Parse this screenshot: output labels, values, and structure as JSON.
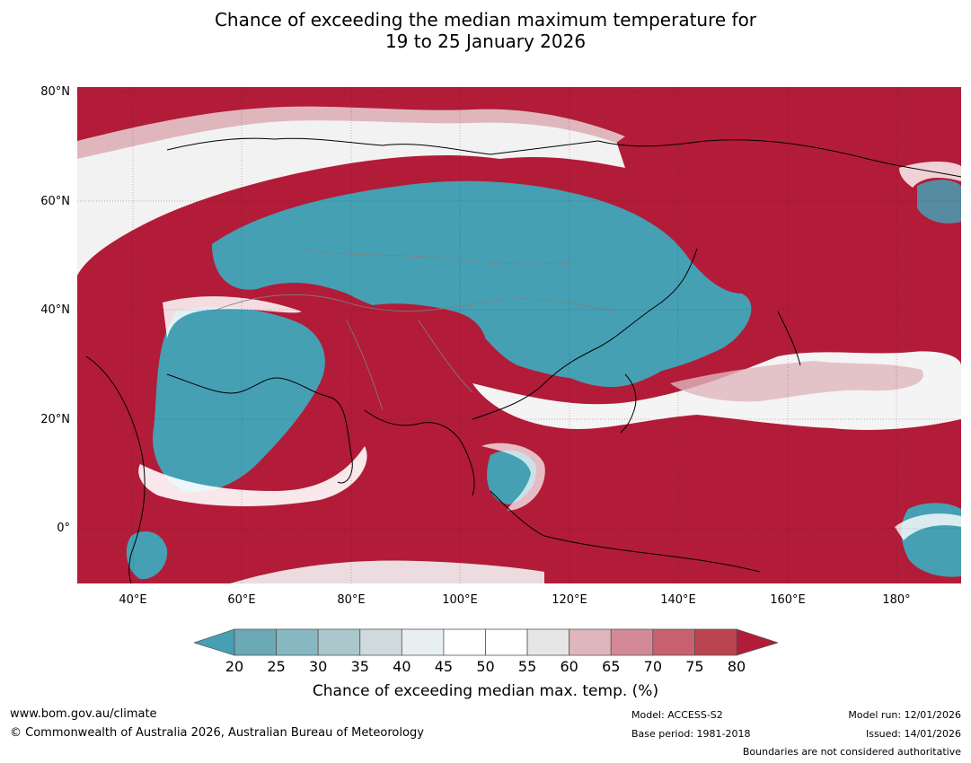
{
  "title": {
    "line1": "Chance of exceeding the median maximum temperature for",
    "line2": "19 to 25 January 2026"
  },
  "map": {
    "lat_ticks": [
      "80°N",
      "60°N",
      "40°N",
      "20°N",
      "0°"
    ],
    "lon_ticks": [
      "40°E",
      "60°E",
      "80°E",
      "100°E",
      "120°E",
      "140°E",
      "160°E",
      "180°"
    ],
    "colors": {
      "ocean_warm": "#b21c38",
      "cool": "#45a0b4",
      "neutral": "#ffffff",
      "coastline": "#000000",
      "border": "#808080"
    }
  },
  "colorbar": {
    "ticks": [
      "20",
      "25",
      "30",
      "35",
      "40",
      "45",
      "50",
      "55",
      "60",
      "65",
      "70",
      "75",
      "80"
    ],
    "colors": [
      "#6aa9b5",
      "#87b8c2",
      "#aac7cb",
      "#d0dade",
      "#e8eff1",
      "#ffffff",
      "#ffffff",
      "#e6e6e6",
      "#e0b6bd",
      "#d48a96",
      "#c7616e",
      "#bb4451"
    ],
    "low_color": "#45a0b4",
    "high_color": "#b21c38",
    "label": "Chance of exceeding median max. temp. (%)"
  },
  "footer": {
    "url": "www.bom.gov.au/climate",
    "copyright": "© Commonwealth of Australia 2026, Australian Bureau of Meteorology",
    "model": "Model: ACCESS-S2",
    "base_period": "Base period: 1981-2018",
    "model_run": "Model run: 12/01/2026",
    "issued": "Issued: 14/01/2026",
    "disclaimer": "Boundaries are not considered authoritative"
  }
}
